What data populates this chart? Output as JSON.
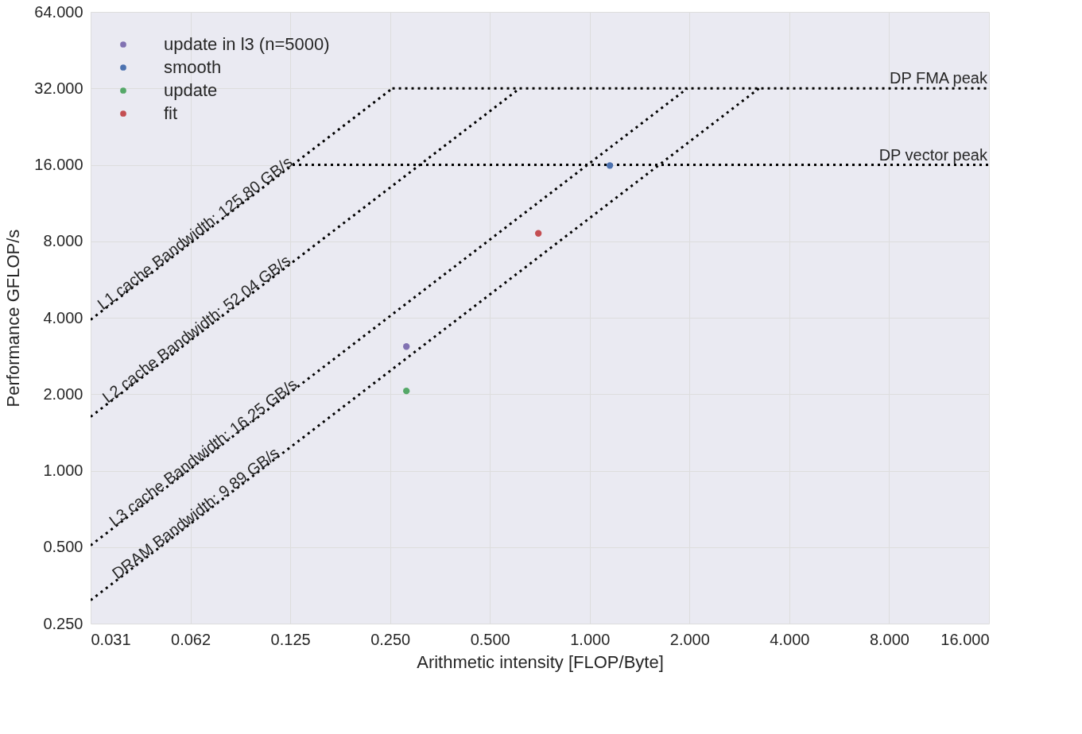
{
  "chart_data": {
    "type": "scatter",
    "xlabel": "Arithmetic intensity [FLOP/Byte]",
    "ylabel": "Performance GFLOP/s",
    "log": "xy",
    "grid": true,
    "legend": "top left",
    "xlim": [
      0.03125,
      16
    ],
    "ylim": [
      0.25,
      64
    ],
    "xticks": [
      {
        "value": 0.03125,
        "label": "0.031"
      },
      {
        "value": 0.0625,
        "label": "0.062"
      },
      {
        "value": 0.125,
        "label": "0.125"
      },
      {
        "value": 0.25,
        "label": "0.250"
      },
      {
        "value": 0.5,
        "label": "0.500"
      },
      {
        "value": 1,
        "label": "1.000"
      },
      {
        "value": 2,
        "label": "2.000"
      },
      {
        "value": 4,
        "label": "4.000"
      },
      {
        "value": 8,
        "label": "8.000"
      },
      {
        "value": 16,
        "label": "16.000"
      }
    ],
    "yticks": [
      {
        "value": 0.25,
        "label": "0.250"
      },
      {
        "value": 0.5,
        "label": "0.500"
      },
      {
        "value": 1,
        "label": "1.000"
      },
      {
        "value": 2,
        "label": "2.000"
      },
      {
        "value": 4,
        "label": "4.000"
      },
      {
        "value": 8,
        "label": "8.000"
      },
      {
        "value": 16,
        "label": "16.000"
      },
      {
        "value": 32,
        "label": "32.000"
      },
      {
        "value": 64,
        "label": "64.000"
      }
    ],
    "series": [
      {
        "name": "update in l3 (n=5000)",
        "marker": "circle",
        "color": "#8172b2",
        "x": [
          0.28
        ],
        "values": [
          3.08
        ]
      },
      {
        "name": "smooth",
        "marker": "circle",
        "color": "#4c72b0",
        "x": [
          1.15
        ],
        "values": [
          15.9
        ]
      },
      {
        "name": "update",
        "marker": "circle",
        "color": "#55a868",
        "x": [
          0.28
        ],
        "values": [
          2.06
        ]
      },
      {
        "name": "fit",
        "marker": "circle",
        "color": "#c44e52",
        "x": [
          0.7
        ],
        "values": [
          8.6
        ]
      },
      {
        "name": "L1 cache Bandwidth: 125.80 GB/s",
        "type": "line",
        "line_style": "dotted",
        "color": "#000000",
        "x": [
          0.03125,
          0.254
        ],
        "values": [
          3.93,
          32
        ]
      },
      {
        "name": "L2 cache Bandwidth: 52.04 GB/s",
        "type": "line",
        "line_style": "dotted",
        "color": "#000000",
        "x": [
          0.03125,
          0.615
        ],
        "values": [
          1.63,
          32
        ]
      },
      {
        "name": "L3 cache Bandwidth: 16.25 GB/s",
        "type": "line",
        "line_style": "dotted",
        "color": "#000000",
        "x": [
          0.03125,
          1.97
        ],
        "values": [
          0.508,
          32
        ]
      },
      {
        "name": "DRAM Bandwidth: 9.89 GB/s",
        "type": "line",
        "line_style": "dotted",
        "color": "#000000",
        "x": [
          0.03125,
          3.24
        ],
        "values": [
          0.309,
          32
        ]
      },
      {
        "name": "DP FMA peak",
        "type": "line",
        "line_style": "dotted",
        "color": "#000000",
        "x": [
          0.254,
          16
        ],
        "values": [
          32,
          32
        ]
      },
      {
        "name": "DP vector peak",
        "type": "line",
        "line_style": "dotted",
        "color": "#000000",
        "x": [
          0.127,
          16
        ],
        "values": [
          16,
          16
        ]
      }
    ]
  }
}
